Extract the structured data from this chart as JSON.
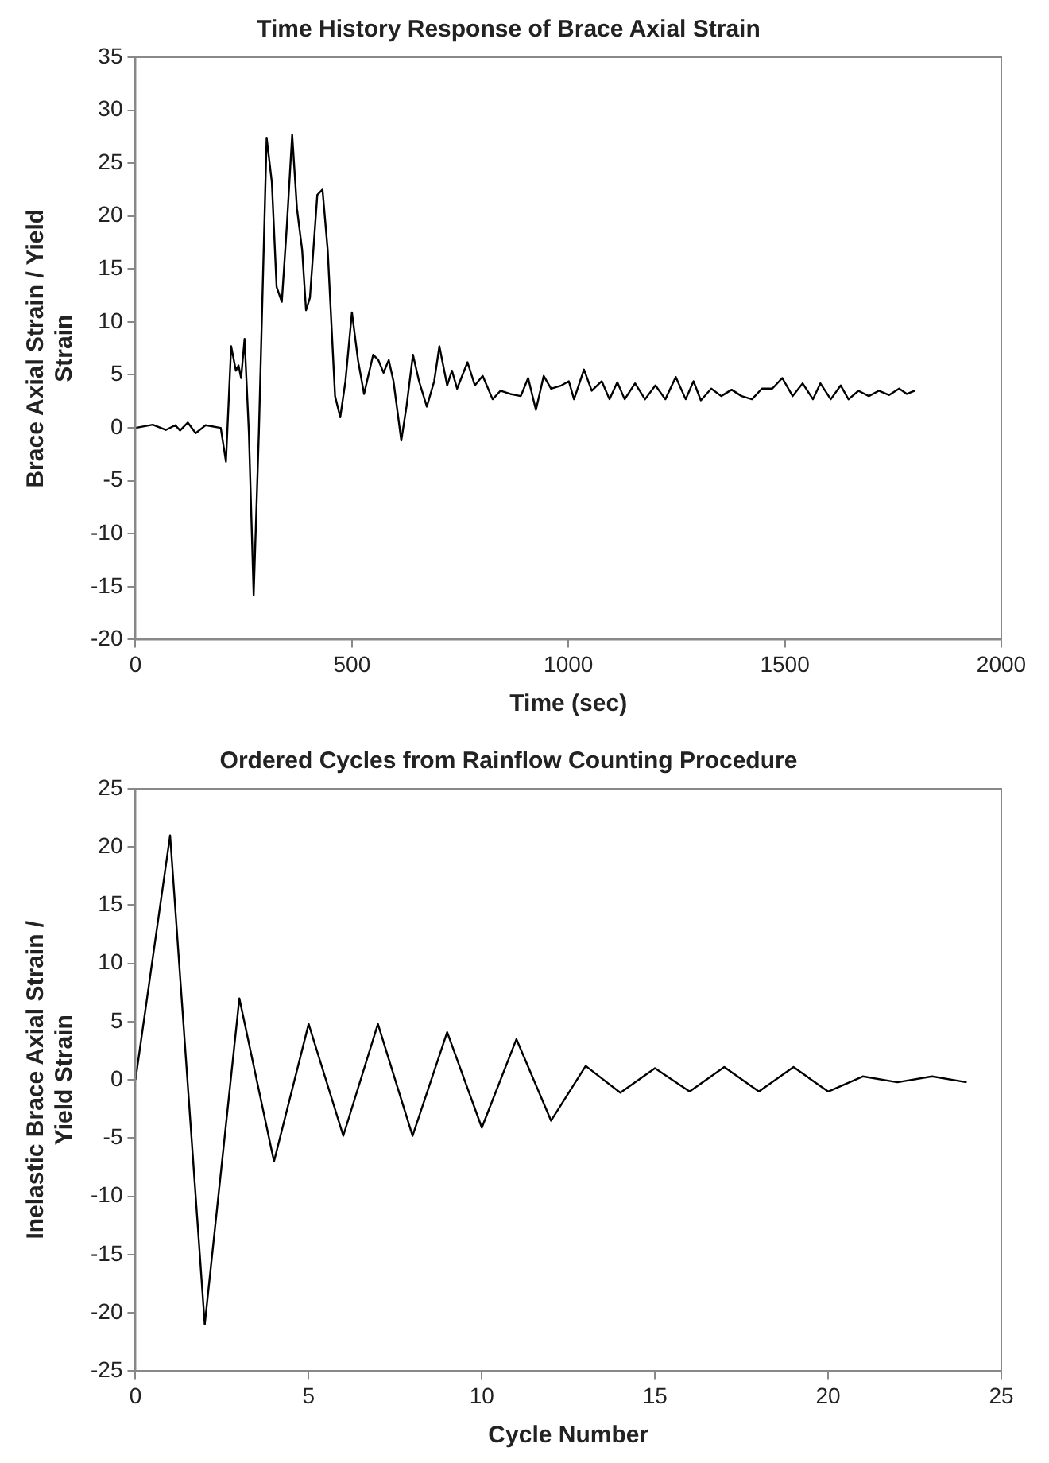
{
  "chart_data": [
    {
      "type": "line",
      "title": "Time History Response of Brace Axial Strain",
      "xlabel": "Time (sec)",
      "ylabel": "Brace Axial Strain / Yield Strain",
      "xlim": [
        0,
        2000
      ],
      "xticks": [
        0,
        500,
        1000,
        1500,
        2000
      ],
      "ylim": [
        -20,
        35
      ],
      "yticks": [
        -20,
        -15,
        -10,
        -5,
        0,
        5,
        10,
        15,
        20,
        25,
        30,
        35
      ],
      "grid": false,
      "legend": false,
      "marker": "none",
      "line_style": "solid",
      "series": [
        {
          "color": "#000000",
          "x": [
            0,
            40,
            70,
            92,
            103,
            121,
            139,
            162,
            197,
            209,
            221,
            232,
            238,
            244,
            252,
            262,
            273,
            285,
            303,
            315,
            326,
            338,
            350,
            362,
            373,
            385,
            394,
            403,
            420,
            432,
            444,
            461,
            473,
            485,
            500,
            514,
            528,
            549,
            561,
            573,
            585,
            596,
            614,
            626,
            641,
            655,
            673,
            690,
            702,
            720,
            731,
            743,
            767,
            784,
            802,
            825,
            843,
            866,
            890,
            907,
            925,
            943,
            960,
            984,
            1001,
            1013,
            1036,
            1054,
            1077,
            1095,
            1113,
            1130,
            1154,
            1177,
            1201,
            1224,
            1248,
            1271,
            1289,
            1306,
            1330,
            1353,
            1377,
            1400,
            1424,
            1447,
            1471,
            1494,
            1518,
            1541,
            1565,
            1582,
            1606,
            1629,
            1647,
            1670,
            1694,
            1717,
            1741,
            1764,
            1782,
            1800
          ],
          "values": [
            0,
            0.3,
            -0.2,
            0.25,
            -0.25,
            0.5,
            -0.5,
            0.25,
            0,
            -3.2,
            7.7,
            5.4,
            5.9,
            4.7,
            8.4,
            -0.5,
            -15.8,
            -0.5,
            27.4,
            23.2,
            13.3,
            11.9,
            19.3,
            27.7,
            20.7,
            16.8,
            11.1,
            12.3,
            22,
            22.5,
            16.8,
            3,
            1,
            4.4,
            10.9,
            6.4,
            3.2,
            6.9,
            6.4,
            5.2,
            6.4,
            4.4,
            -1.2,
            2,
            6.9,
            4.4,
            2,
            4.4,
            7.7,
            4,
            5.4,
            3.7,
            6.2,
            4,
            4.9,
            2.7,
            3.5,
            3.2,
            3,
            4.7,
            1.7,
            4.9,
            3.7,
            4,
            4.4,
            2.7,
            5.5,
            3.5,
            4.4,
            2.7,
            4.3,
            2.7,
            4.2,
            2.7,
            4,
            2.7,
            4.8,
            2.7,
            4.4,
            2.6,
            3.7,
            3,
            3.6,
            3,
            2.7,
            3.7,
            3.7,
            4.7,
            3,
            4.2,
            2.7,
            4.2,
            2.7,
            4,
            2.7,
            3.5,
            3,
            3.5,
            3.1,
            3.7,
            3.2,
            3.5
          ]
        }
      ]
    },
    {
      "type": "line",
      "title": "Ordered Cycles from Rainflow Counting Procedure",
      "xlabel": "Cycle Number",
      "ylabel": "Inelastic Brace Axial Strain / Yield Strain",
      "xlim": [
        0,
        25
      ],
      "xticks": [
        0,
        5,
        10,
        15,
        20,
        25
      ],
      "ylim": [
        -25,
        25
      ],
      "yticks": [
        -25,
        -20,
        -15,
        -10,
        -5,
        0,
        5,
        10,
        15,
        20,
        25
      ],
      "grid": false,
      "legend": false,
      "marker": "none",
      "line_style": "solid",
      "series": [
        {
          "color": "#000000",
          "x": [
            0,
            1,
            2,
            3,
            4,
            5,
            6,
            7,
            8,
            9,
            10,
            11,
            12,
            13,
            14,
            15,
            16,
            17,
            18,
            19,
            20,
            21,
            22,
            23,
            24
          ],
          "values": [
            0,
            21,
            -21,
            7,
            -7,
            4.8,
            -4.8,
            4.8,
            -4.8,
            4.1,
            -4.1,
            3.5,
            -3.5,
            1.2,
            -1.1,
            1,
            -1,
            1.1,
            -1,
            1.1,
            -1,
            0.3,
            -0.2,
            0.3,
            -0.2
          ]
        }
      ]
    }
  ]
}
